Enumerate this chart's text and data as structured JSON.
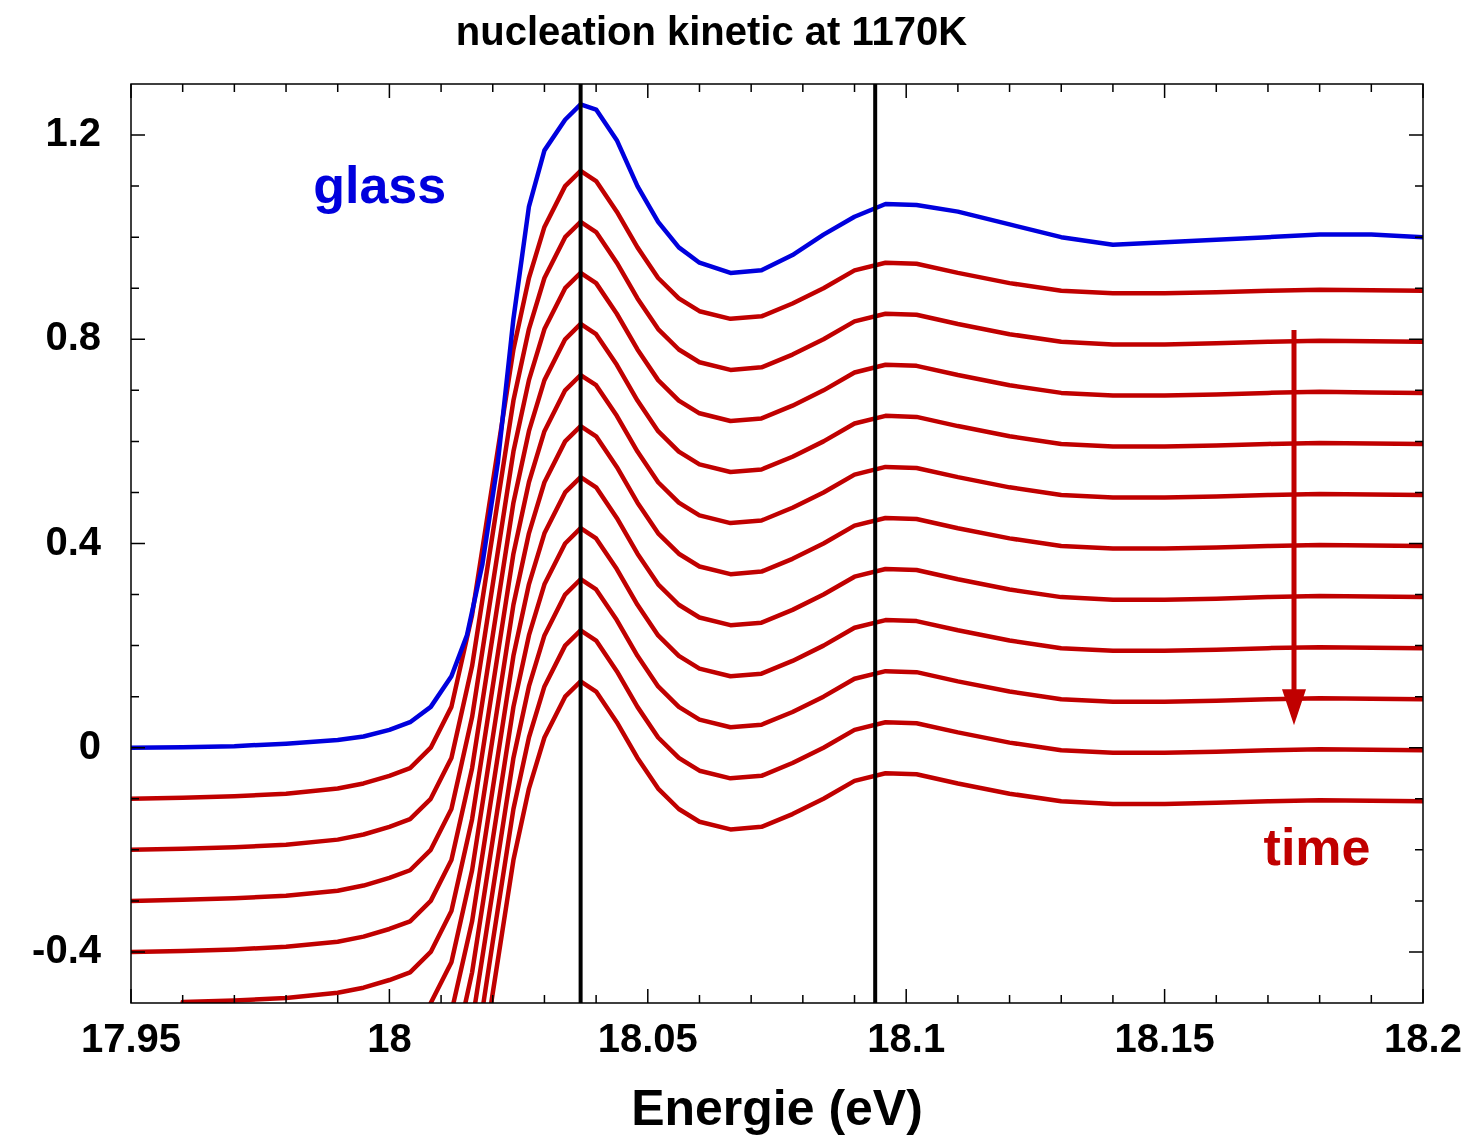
{
  "chart_data": {
    "type": "line",
    "title": "nucleation kinetic at 1170K",
    "xlabel": "Energie (eV)",
    "annotations": [
      "time"
    ],
    "legend": false,
    "xlim": [
      17.95,
      18.2
    ],
    "xticks": [
      17.95,
      {
        "value": 17.96,
        "label": null
      },
      {
        "value": 17.97,
        "label": null
      },
      {
        "value": 17.98,
        "label": null
      },
      {
        "value": 17.99,
        "label": null
      },
      18,
      {
        "value": 18.01,
        "label": null
      },
      {
        "value": 18.02,
        "label": null
      },
      {
        "value": 18.03,
        "label": null
      },
      {
        "value": 18.04,
        "label": null
      },
      18.05,
      {
        "value": 18.06,
        "label": null
      },
      {
        "value": 18.07,
        "label": null
      },
      {
        "value": 18.08,
        "label": null
      },
      {
        "value": 18.09,
        "label": null
      },
      18.1,
      {
        "value": 18.11,
        "label": null
      },
      {
        "value": 18.12,
        "label": null
      },
      {
        "value": 18.13,
        "label": null
      },
      {
        "value": 18.14,
        "label": null
      },
      18.15,
      {
        "value": 18.16,
        "label": null
      },
      {
        "value": 18.17,
        "label": null
      },
      {
        "value": 18.18,
        "label": null
      },
      {
        "value": 18.19,
        "label": null
      },
      18.2
    ],
    "ylim": [
      -0.5,
      1.3
    ],
    "yticks": [
      -0.4,
      {
        "value": -0.3,
        "label": null
      },
      {
        "value": -0.2,
        "label": null
      },
      {
        "value": -0.1,
        "label": null
      },
      0,
      {
        "value": 0.1,
        "label": null
      },
      {
        "value": 0.2,
        "label": null
      },
      {
        "value": 0.3,
        "label": null
      },
      0.4,
      {
        "value": 0.5,
        "label": null
      },
      {
        "value": 0.6,
        "label": null
      },
      {
        "value": 0.7,
        "label": null
      },
      0.8,
      {
        "value": 0.9,
        "label": null
      },
      {
        "value": 1.0,
        "label": null
      },
      {
        "value": 1.1,
        "label": null
      },
      1.2
    ],
    "ref_lines": [
      {
        "axis": "x",
        "value": 18.037,
        "color": "#000000"
      },
      {
        "axis": "x",
        "value": 18.094,
        "color": "#000000"
      }
    ],
    "x": [
      17.95,
      17.96,
      17.97,
      17.98,
      17.99,
      17.995,
      18.0,
      18.004,
      18.008,
      18.012,
      18.016,
      18.02,
      18.024,
      18.027,
      18.03,
      18.034,
      18.037,
      18.04,
      18.044,
      18.048,
      18.052,
      18.056,
      18.06,
      18.066,
      18.072,
      18.078,
      18.084,
      18.09,
      18.096,
      18.102,
      18.11,
      18.12,
      18.13,
      18.14,
      18.15,
      18.16,
      18.17,
      18.18,
      18.19,
      18.2
    ],
    "series": [
      {
        "name": "glass",
        "color": "#0000dd",
        "x": [
          17.95,
          17.96,
          17.97,
          17.98,
          17.99,
          17.995,
          18.0,
          18.004,
          18.008,
          18.012,
          18.015,
          18.018,
          18.021,
          18.024,
          18.027,
          18.03,
          18.034,
          18.037,
          18.04,
          18.044,
          18.048,
          18.052,
          18.056,
          18.06,
          18.066,
          18.072,
          18.078,
          18.084,
          18.09,
          18.096,
          18.102,
          18.11,
          18.12,
          18.13,
          18.14,
          18.15,
          18.16,
          18.17,
          18.18,
          18.19,
          18.2
        ],
        "values": [
          0,
          0.001,
          0.003,
          0.008,
          0.015,
          0.022,
          0.035,
          0.05,
          0.08,
          0.14,
          0.22,
          0.36,
          0.56,
          0.84,
          1.06,
          1.17,
          1.23,
          1.26,
          1.25,
          1.19,
          1.1,
          1.03,
          0.98,
          0.95,
          0.93,
          0.935,
          0.965,
          1.005,
          1.04,
          1.065,
          1.063,
          1.05,
          1.025,
          1.0,
          0.985,
          0.99,
          0.995,
          1.0,
          1.005,
          1.005,
          1.0
        ]
      },
      {
        "color": "#c00000",
        "values": [
          -0.1,
          -0.098,
          -0.095,
          -0.09,
          -0.08,
          -0.07,
          -0.055,
          -0.04,
          0,
          0.08,
          0.26,
          0.52,
          0.78,
          0.92,
          1.02,
          1.1,
          1.13,
          1.11,
          1.05,
          0.98,
          0.92,
          0.88,
          0.855,
          0.84,
          0.845,
          0.87,
          0.9,
          0.935,
          0.95,
          0.948,
          0.93,
          0.91,
          0.895,
          0.89,
          0.89,
          0.892,
          0.895,
          0.897,
          0.896,
          0.895
        ]
      },
      {
        "color": "#c00000",
        "values": [
          -0.2,
          -0.198,
          -0.195,
          -0.19,
          -0.18,
          -0.17,
          -0.155,
          -0.14,
          -0.1,
          -0.02,
          0.16,
          0.42,
          0.68,
          0.82,
          0.92,
          1.0,
          1.03,
          1.01,
          0.95,
          0.88,
          0.82,
          0.78,
          0.755,
          0.74,
          0.745,
          0.77,
          0.8,
          0.835,
          0.85,
          0.848,
          0.83,
          0.81,
          0.795,
          0.79,
          0.79,
          0.792,
          0.795,
          0.797,
          0.796,
          0.795
        ]
      },
      {
        "color": "#c00000",
        "values": [
          -0.3,
          -0.298,
          -0.295,
          -0.29,
          -0.28,
          -0.27,
          -0.255,
          -0.24,
          -0.2,
          -0.12,
          0.06,
          0.32,
          0.58,
          0.72,
          0.82,
          0.9,
          0.93,
          0.91,
          0.85,
          0.78,
          0.72,
          0.68,
          0.655,
          0.64,
          0.645,
          0.67,
          0.7,
          0.735,
          0.75,
          0.748,
          0.73,
          0.71,
          0.695,
          0.69,
          0.69,
          0.692,
          0.695,
          0.697,
          0.696,
          0.695
        ]
      },
      {
        "color": "#c00000",
        "values": [
          -0.4,
          -0.398,
          -0.395,
          -0.39,
          -0.38,
          -0.37,
          -0.355,
          -0.34,
          -0.3,
          -0.22,
          -0.04,
          0.22,
          0.48,
          0.62,
          0.72,
          0.8,
          0.83,
          0.81,
          0.75,
          0.68,
          0.62,
          0.58,
          0.555,
          0.54,
          0.545,
          0.57,
          0.6,
          0.635,
          0.65,
          0.648,
          0.63,
          0.61,
          0.595,
          0.59,
          0.59,
          0.592,
          0.595,
          0.597,
          0.596,
          0.595
        ]
      },
      {
        "color": "#c00000",
        "values": [
          null,
          -0.498,
          -0.495,
          -0.49,
          -0.48,
          -0.47,
          -0.455,
          -0.44,
          -0.4,
          -0.32,
          -0.14,
          0.12,
          0.38,
          0.52,
          0.62,
          0.7,
          0.73,
          0.71,
          0.65,
          0.58,
          0.52,
          0.48,
          0.455,
          0.44,
          0.445,
          0.47,
          0.5,
          0.535,
          0.55,
          0.548,
          0.53,
          0.51,
          0.495,
          0.49,
          0.49,
          0.492,
          0.495,
          0.497,
          0.496,
          0.495
        ]
      },
      {
        "color": "#c00000",
        "x": [
          18.008,
          18.012,
          18.016,
          18.02,
          18.024,
          18.027,
          18.03,
          18.034,
          18.037,
          18.04,
          18.044,
          18.048,
          18.052,
          18.056,
          18.06,
          18.066,
          18.072,
          18.078,
          18.084,
          18.09,
          18.096,
          18.102,
          18.11,
          18.12,
          18.13,
          18.14,
          18.15,
          18.16,
          18.17,
          18.18,
          18.19,
          18.2
        ],
        "values": [
          -0.5,
          -0.42,
          -0.24,
          0.02,
          0.28,
          0.42,
          0.52,
          0.6,
          0.63,
          0.61,
          0.55,
          0.48,
          0.42,
          0.38,
          0.355,
          0.34,
          0.345,
          0.37,
          0.4,
          0.435,
          0.45,
          0.448,
          0.43,
          0.41,
          0.395,
          0.39,
          0.39,
          0.392,
          0.395,
          0.397,
          0.396,
          0.395
        ]
      },
      {
        "color": "#c00000",
        "x": [
          18.0124,
          18.016,
          18.02,
          18.024,
          18.027,
          18.03,
          18.034,
          18.037,
          18.04,
          18.044,
          18.048,
          18.052,
          18.056,
          18.06,
          18.066,
          18.072,
          18.078,
          18.084,
          18.09,
          18.096,
          18.102,
          18.11,
          18.12,
          18.13,
          18.14,
          18.15,
          18.16,
          18.17,
          18.18,
          18.19,
          18.2
        ],
        "values": [
          -0.5,
          -0.34,
          -0.08,
          0.18,
          0.32,
          0.42,
          0.5,
          0.53,
          0.51,
          0.45,
          0.38,
          0.32,
          0.28,
          0.255,
          0.24,
          0.245,
          0.27,
          0.3,
          0.335,
          0.35,
          0.348,
          0.33,
          0.31,
          0.295,
          0.29,
          0.29,
          0.292,
          0.295,
          0.297,
          0.296,
          0.295
        ]
      },
      {
        "color": "#c00000",
        "x": [
          18.0147,
          18.016,
          18.02,
          18.024,
          18.027,
          18.03,
          18.034,
          18.037,
          18.04,
          18.044,
          18.048,
          18.052,
          18.056,
          18.06,
          18.066,
          18.072,
          18.078,
          18.084,
          18.09,
          18.096,
          18.102,
          18.11,
          18.12,
          18.13,
          18.14,
          18.15,
          18.16,
          18.17,
          18.18,
          18.19,
          18.2
        ],
        "values": [
          -0.5,
          -0.44,
          -0.18,
          0.08,
          0.22,
          0.32,
          0.4,
          0.43,
          0.41,
          0.35,
          0.28,
          0.22,
          0.18,
          0.155,
          0.14,
          0.145,
          0.17,
          0.2,
          0.235,
          0.25,
          0.248,
          0.23,
          0.21,
          0.195,
          0.19,
          0.19,
          0.192,
          0.195,
          0.197,
          0.196,
          0.195
        ]
      },
      {
        "color": "#c00000",
        "x": [
          18.0166,
          18.02,
          18.024,
          18.027,
          18.03,
          18.034,
          18.037,
          18.04,
          18.044,
          18.048,
          18.052,
          18.056,
          18.06,
          18.066,
          18.072,
          18.078,
          18.084,
          18.09,
          18.096,
          18.102,
          18.11,
          18.12,
          18.13,
          18.14,
          18.15,
          18.16,
          18.17,
          18.18,
          18.19,
          18.2
        ],
        "values": [
          -0.5,
          -0.28,
          -0.02,
          0.12,
          0.22,
          0.3,
          0.33,
          0.31,
          0.25,
          0.18,
          0.12,
          0.08,
          0.055,
          0.04,
          0.045,
          0.07,
          0.1,
          0.135,
          0.15,
          0.148,
          0.13,
          0.11,
          0.095,
          0.09,
          0.09,
          0.092,
          0.095,
          0.097,
          0.096,
          0.095
        ]
      },
      {
        "color": "#c00000",
        "x": [
          18.0182,
          18.02,
          18.024,
          18.027,
          18.03,
          18.034,
          18.037,
          18.04,
          18.044,
          18.048,
          18.052,
          18.056,
          18.06,
          18.066,
          18.072,
          18.078,
          18.084,
          18.09,
          18.096,
          18.102,
          18.11,
          18.12,
          18.13,
          18.14,
          18.15,
          18.16,
          18.17,
          18.18,
          18.19,
          18.2
        ],
        "values": [
          -0.5,
          -0.38,
          -0.12,
          0.02,
          0.12,
          0.2,
          0.23,
          0.21,
          0.15,
          0.08,
          0.02,
          -0.02,
          -0.045,
          -0.06,
          -0.055,
          -0.03,
          0,
          0.035,
          0.05,
          0.048,
          0.03,
          0.01,
          -0.005,
          -0.01,
          -0.01,
          -0.008,
          -0.005,
          -0.003,
          -0.004,
          -0.005
        ]
      },
      {
        "color": "#c00000",
        "x": [
          18.0197,
          18.02,
          18.024,
          18.027,
          18.03,
          18.034,
          18.037,
          18.04,
          18.044,
          18.048,
          18.052,
          18.056,
          18.06,
          18.066,
          18.072,
          18.078,
          18.084,
          18.09,
          18.096,
          18.102,
          18.11,
          18.12,
          18.13,
          18.14,
          18.15,
          18.16,
          18.17,
          18.18,
          18.19,
          18.2
        ],
        "values": [
          -0.5,
          -0.48,
          -0.22,
          -0.08,
          0.02,
          0.1,
          0.13,
          0.11,
          0.05,
          -0.02,
          -0.08,
          -0.12,
          -0.145,
          -0.16,
          -0.155,
          -0.13,
          -0.1,
          -0.065,
          -0.05,
          -0.052,
          -0.07,
          -0.09,
          -0.105,
          -0.11,
          -0.11,
          -0.108,
          -0.105,
          -0.103,
          -0.104,
          -0.105
        ]
      }
    ]
  }
}
